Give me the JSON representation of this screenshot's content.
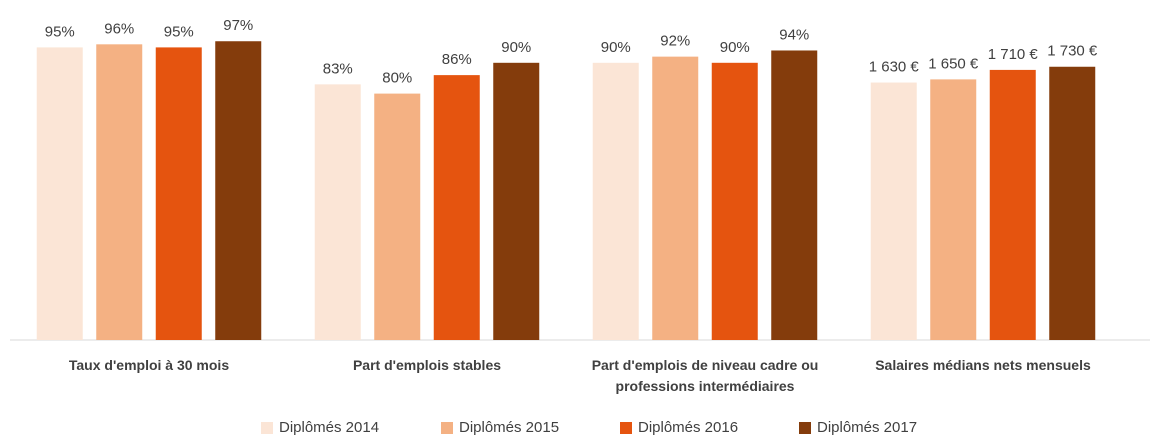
{
  "chart_data": {
    "type": "bar",
    "categories": [
      "Taux d'emploi à 30 mois",
      "Part d'emplois stables",
      "Part d'emplois de niveau cadre ou professions intermédiaires",
      "Salaires médians nets mensuels"
    ],
    "category_axes": [
      "y",
      "y",
      "y",
      "y2"
    ],
    "ylim": [
      0,
      100
    ],
    "y2lim": [
      0,
      1950
    ],
    "series": [
      {
        "name": "Diplômés 2014",
        "color": "#fbe5d6",
        "values": [
          95,
          83,
          90,
          1630
        ],
        "value_labels": [
          "95%",
          "83%",
          "90%",
          "1 630 €"
        ]
      },
      {
        "name": "Diplômés 2015",
        "color": "#f4b183",
        "values": [
          96,
          80,
          92,
          1650
        ],
        "value_labels": [
          "96%",
          "80%",
          "92%",
          "1 650 €"
        ]
      },
      {
        "name": "Diplômés 2016",
        "color": "#e5540f",
        "values": [
          95,
          86,
          90,
          1710
        ],
        "value_labels": [
          "95%",
          "86%",
          "90%",
          "1 710 €"
        ]
      },
      {
        "name": "Diplômés 2017",
        "color": "#843c0c",
        "values": [
          97,
          90,
          94,
          1730
        ],
        "value_labels": [
          "97%",
          "90%",
          "94%",
          "1 730 €"
        ]
      }
    ]
  }
}
